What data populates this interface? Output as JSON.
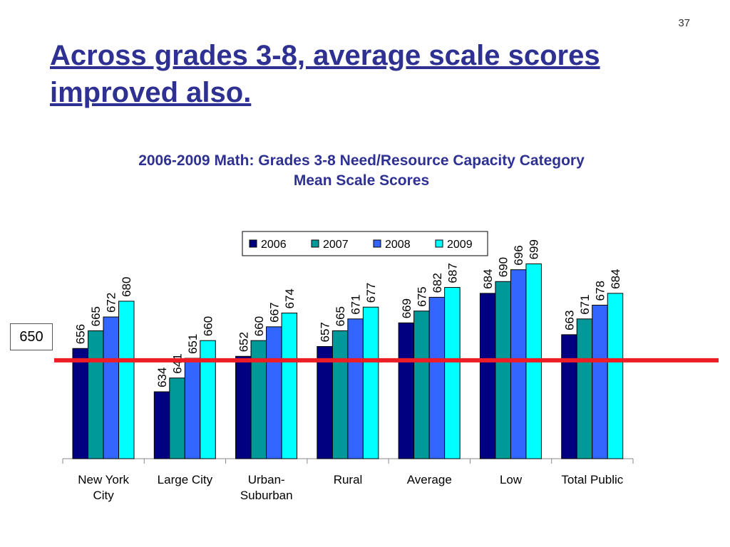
{
  "slide": {
    "number": "37",
    "title": "Across grades 3-8, average scale scores improved also."
  },
  "reference_line": {
    "value": 650,
    "label": "650",
    "color": "#ee1c24"
  },
  "colors": {
    "title": "#2e3192",
    "series": [
      "#000080",
      "#009999",
      "#3366ff",
      "#00ffff"
    ]
  },
  "chart_data": {
    "type": "bar",
    "title": "2006-2009 Math: Grades 3-8 Need/Resource Capacity Category Mean Scale Scores",
    "title_lines": [
      "2006-2009 Math: Grades 3-8 Need/Resource Capacity Category",
      "Mean Scale Scores"
    ],
    "categories": [
      "New York City",
      "Large City",
      "Urban-Suburban",
      "Rural",
      "Average",
      "Low",
      "Total Public"
    ],
    "category_lines": [
      [
        "New York",
        "City"
      ],
      [
        "Large City"
      ],
      [
        "Urban-",
        "Suburban"
      ],
      [
        "Rural"
      ],
      [
        "Average"
      ],
      [
        "Low"
      ],
      [
        "Total Public"
      ]
    ],
    "series": [
      {
        "name": "2006",
        "values": [
          656,
          634,
          652,
          657,
          669,
          684,
          663
        ]
      },
      {
        "name": "2007",
        "values": [
          665,
          641,
          660,
          665,
          675,
          690,
          671
        ]
      },
      {
        "name": "2008",
        "values": [
          672,
          651,
          667,
          671,
          682,
          696,
          678
        ]
      },
      {
        "name": "2009",
        "values": [
          680,
          660,
          674,
          677,
          687,
          699,
          684
        ]
      }
    ],
    "ylim": [
      600,
      710
    ],
    "xlabel": "",
    "ylabel": "",
    "legend": "top",
    "grid": false,
    "data_labels": true
  }
}
